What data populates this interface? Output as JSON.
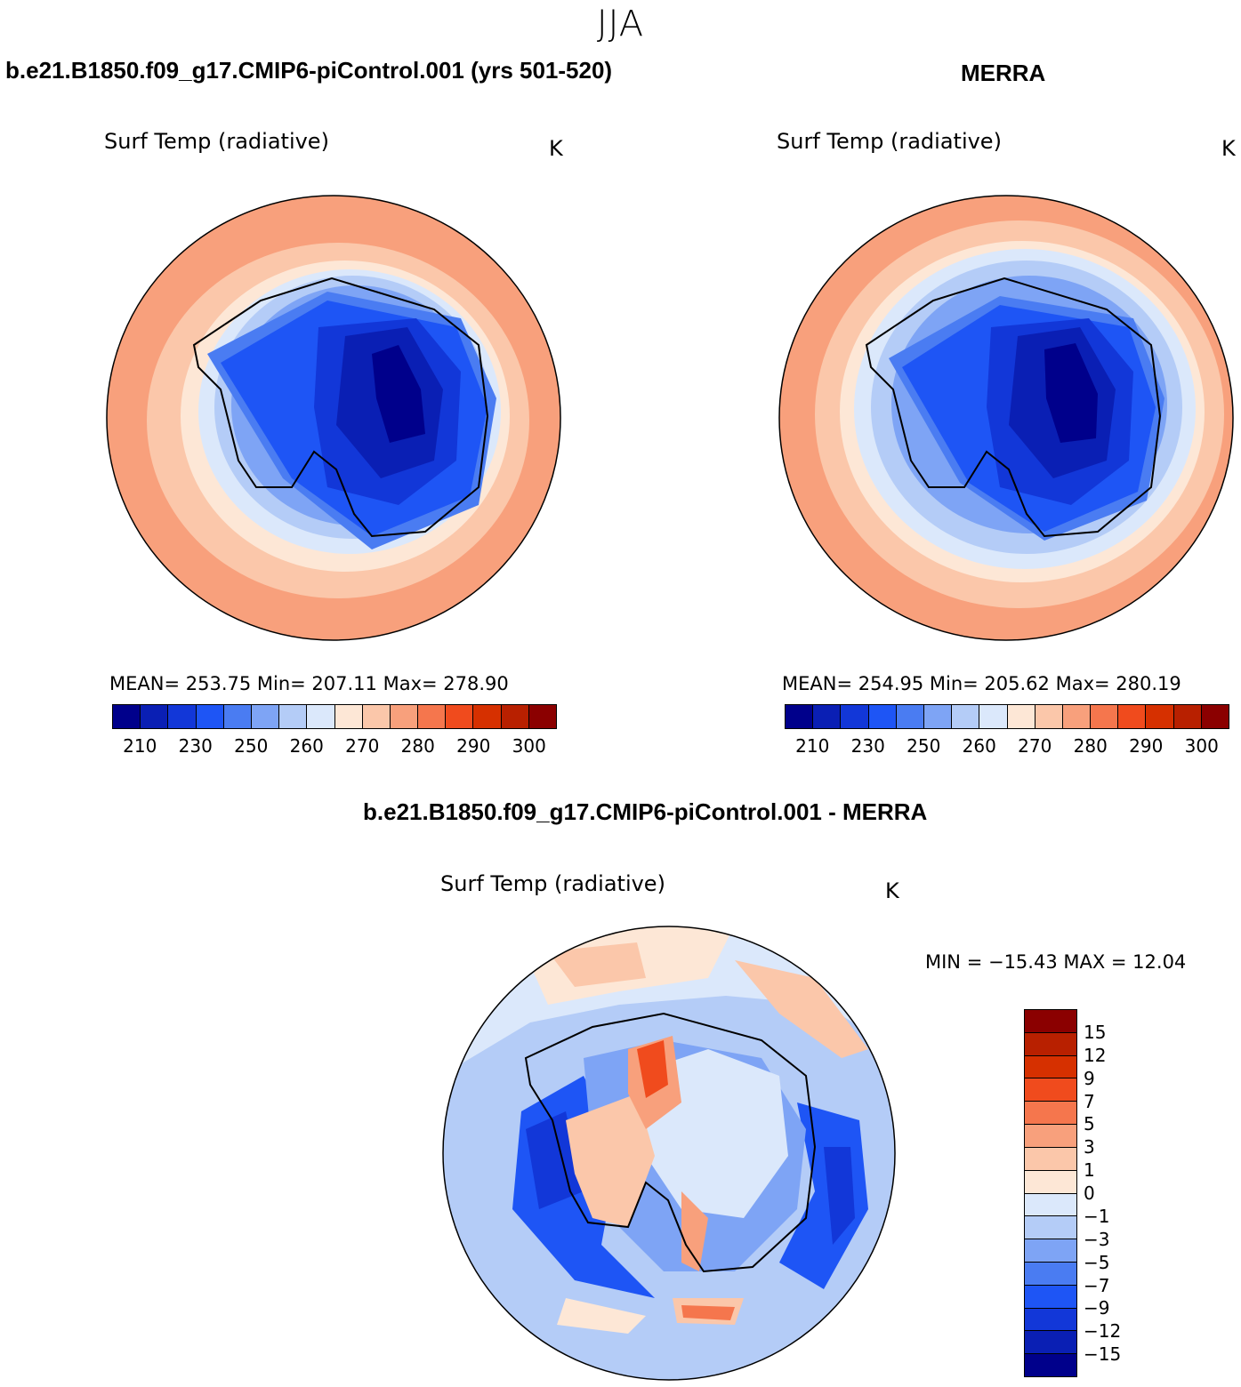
{
  "header": {
    "season": "JJA"
  },
  "left_panel": {
    "title": "b.e21.B1850.f09_g17.CMIP6-piControl.001 (yrs 501-520)",
    "variable": "Surf Temp (radiative)",
    "unit": "K",
    "stats": "MEAN= 253.75   Min= 207.11   Max= 278.90",
    "mean": 253.75,
    "min": 207.11,
    "max": 278.9
  },
  "right_panel": {
    "title": "MERRA",
    "variable": "Surf Temp (radiative)",
    "unit": "K",
    "stats": "MEAN= 254.95   Min= 205.62   Max= 280.19",
    "mean": 254.95,
    "min": 205.62,
    "max": 280.19
  },
  "diff_panel": {
    "title": "b.e21.B1850.f09_g17.CMIP6-piControl.001 - MERRA",
    "variable": "Surf Temp (radiative)",
    "unit": "K",
    "stats": "MIN = −15.43 MAX =   12.04",
    "min": -15.43,
    "max": 12.04
  },
  "temp_colorbar": {
    "colors": [
      "#00008b",
      "#0a1fb4",
      "#1237d8",
      "#1e55f5",
      "#4a7cf2",
      "#7ea4f5",
      "#b4ccf7",
      "#dbe8fb",
      "#fde7d6",
      "#fbc7aa",
      "#f8a07c",
      "#f5764d",
      "#f04b1d",
      "#d63000",
      "#b82000",
      "#8b0000"
    ],
    "tick_labels": [
      "210",
      "230",
      "250",
      "260",
      "270",
      "280",
      "290",
      "300"
    ]
  },
  "diff_colorbar": {
    "colors": [
      "#8b0000",
      "#b82000",
      "#d63000",
      "#f04b1d",
      "#f5764d",
      "#f8a07c",
      "#fbc7aa",
      "#fde7d6",
      "#dbe8fb",
      "#b4ccf7",
      "#7ea4f5",
      "#4a7cf2",
      "#1e55f5",
      "#1237d8",
      "#0a1fb4",
      "#00008b"
    ],
    "tick_labels": [
      "15",
      "12",
      "9",
      "7",
      "5",
      "3",
      "1",
      "0",
      "−1",
      "−3",
      "−5",
      "−7",
      "−9",
      "−12",
      "−15"
    ]
  }
}
